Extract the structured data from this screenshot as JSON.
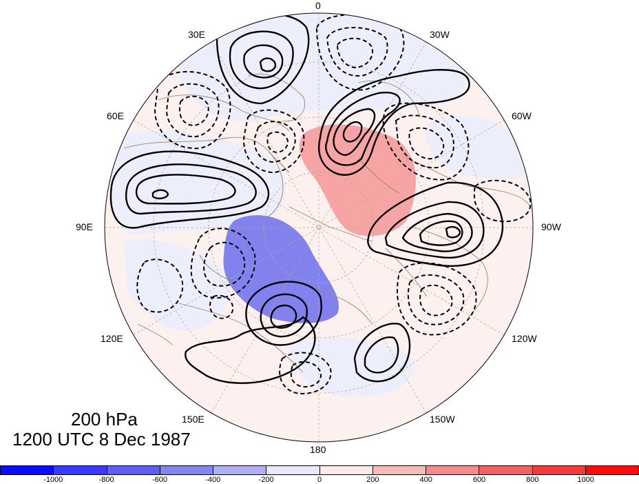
{
  "title": {
    "line1": "200 hPa",
    "line2": "1200 UTC 8 Dec 1987"
  },
  "longitude_labels": [
    {
      "id": "lon-0",
      "text": "0"
    },
    {
      "id": "lon-30w",
      "text": "30W"
    },
    {
      "id": "lon-60w",
      "text": "60W"
    },
    {
      "id": "lon-90w",
      "text": "90W"
    },
    {
      "id": "lon-120w",
      "text": "120W"
    },
    {
      "id": "lon-150w",
      "text": "150W"
    },
    {
      "id": "lon-180",
      "text": "180"
    },
    {
      "id": "lon-150e",
      "text": "150E"
    },
    {
      "id": "lon-120e",
      "text": "120E"
    },
    {
      "id": "lon-90e",
      "text": "90E"
    },
    {
      "id": "lon-60e",
      "text": "60E"
    },
    {
      "id": "lon-30e",
      "text": "30E"
    }
  ],
  "colorbar": {
    "colors": [
      "#0a0aff",
      "#3a3aff",
      "#5e5ef5",
      "#8585f2",
      "#b0b0f5",
      "#e8e8fc",
      "#fde9e8",
      "#f8b9b9",
      "#f58a8a",
      "#f26161",
      "#f53a3a",
      "#ff0a0a"
    ],
    "tick_labels": [
      "-1000",
      "-800",
      "-600",
      "-400",
      "-200",
      "0",
      "200",
      "400",
      "600",
      "800",
      "1000"
    ]
  }
}
